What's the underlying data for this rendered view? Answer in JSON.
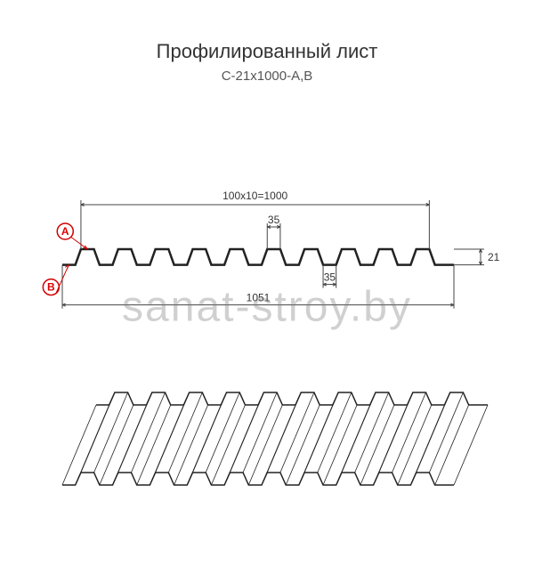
{
  "title": "Профилированный лист",
  "subtitle": "С-21х1000-А,В",
  "watermark": "sanat-stroy.by",
  "profile": {
    "module_count": 10,
    "module_width": 100,
    "effective_width": 1000,
    "overall_width": 1051,
    "top_flat": 35,
    "bottom_flat": 35,
    "height": 21,
    "top_label": "100x10=1000",
    "bottom_label": "1051",
    "top_flat_label": "35",
    "bottom_flat_label": "35",
    "height_label": "21",
    "marker_a": "A",
    "marker_b": "B"
  },
  "colors": {
    "line": "#222222",
    "dim": "#444444",
    "marker_stroke": "#d00000",
    "marker_fill": "#ffffff",
    "bg": "#ffffff"
  },
  "stroke": {
    "profile": 2.5,
    "dim": 1,
    "iso": 1.5
  }
}
